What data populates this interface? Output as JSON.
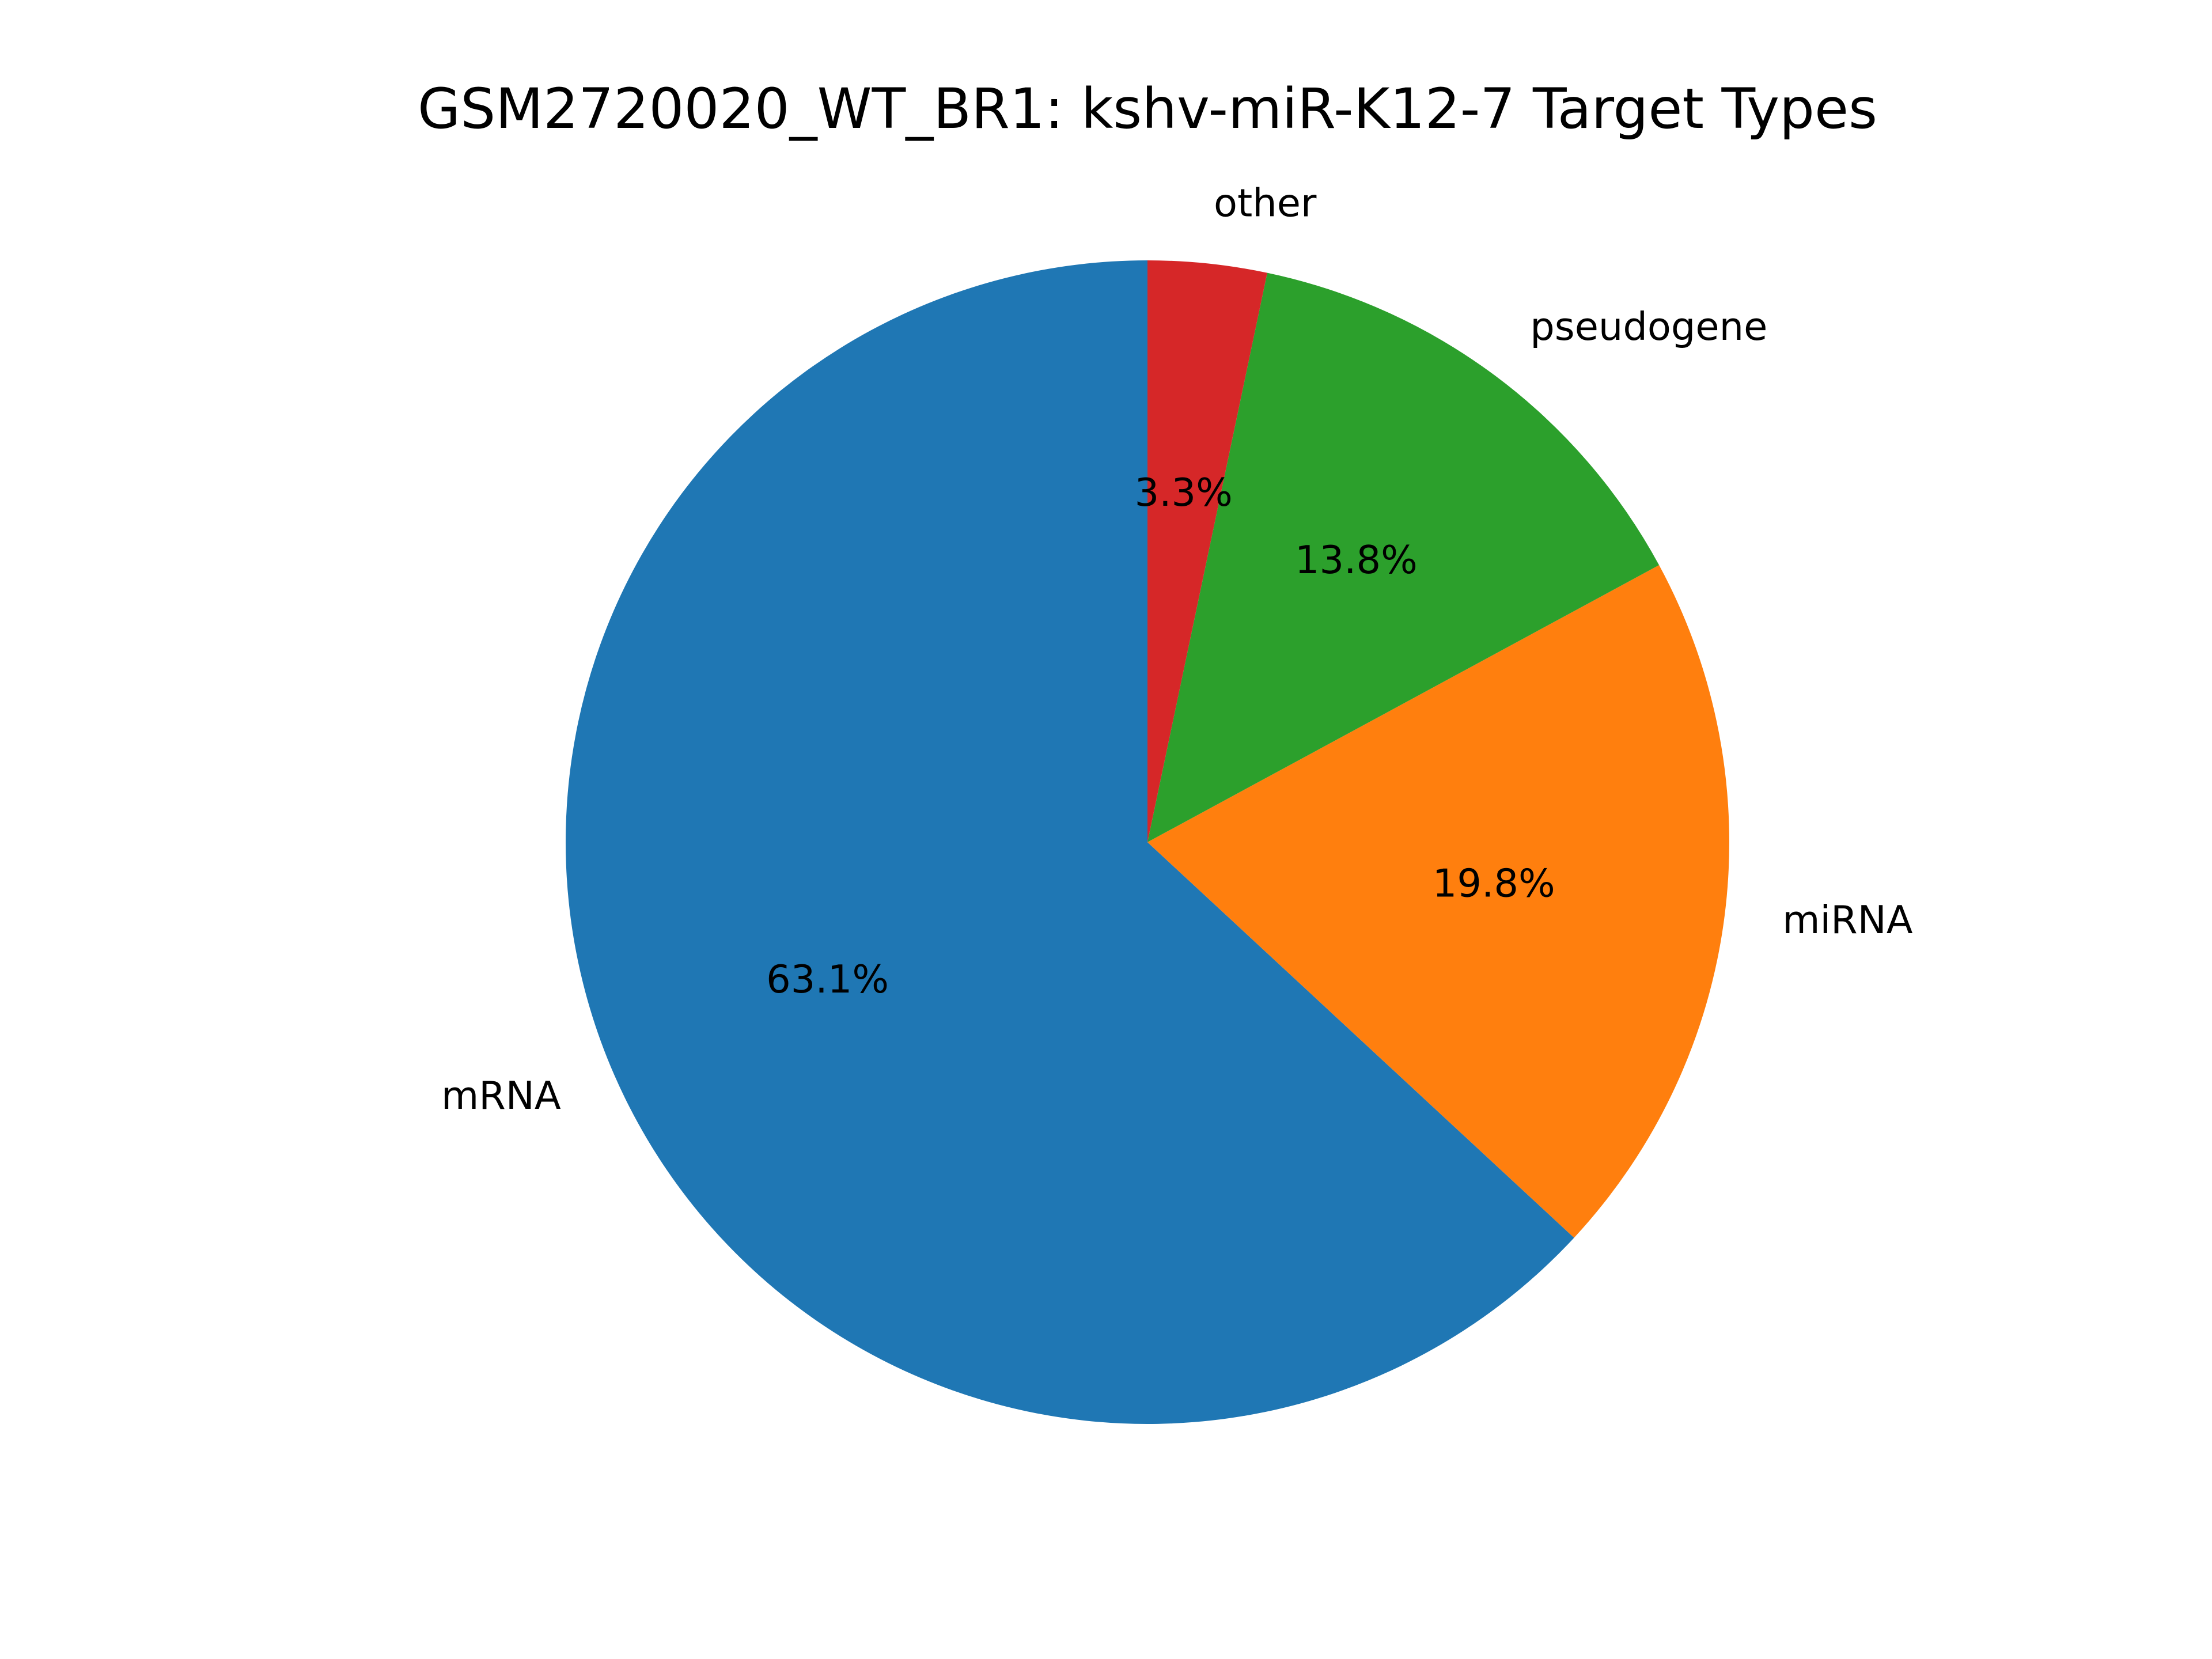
{
  "chart_data": {
    "type": "pie",
    "title": "GSM2720020_WT_BR1: kshv-miR-K12-7 Target Types",
    "categories": [
      "mRNA",
      "miRNA",
      "pseudogene",
      "other"
    ],
    "values": [
      63.1,
      19.8,
      13.8,
      3.3
    ],
    "value_labels": [
      "63.1%",
      "19.8%",
      "13.8%",
      "3.3%"
    ],
    "colors": [
      "#1f77b4",
      "#ff7f0e",
      "#2ca02c",
      "#d62728"
    ],
    "start_angle": "top (90°)",
    "direction": "counterclockwise",
    "legend": "none"
  }
}
